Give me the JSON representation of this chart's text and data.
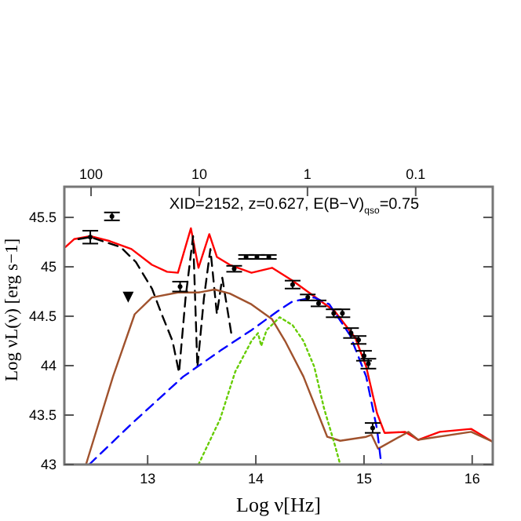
{
  "chart_data": {
    "type": "line",
    "title": "XID=2152, z=0.627, E(B−V)$_{qso}$=0.75",
    "xlabel": "Log ν[Hz]",
    "ylabel": "Log νL(ν) [erg s−1]",
    "xlim": [
      12.23,
      16.19
    ],
    "xticks": [
      13,
      14,
      15,
      16
    ],
    "ylim": [
      43,
      45.81
    ],
    "yticks": [
      43,
      43.5,
      44,
      44.5,
      45,
      45.5
    ],
    "x2lim": [
      176.6,
      0.0194
    ],
    "x2ticks": [
      100,
      10,
      1,
      0.1
    ],
    "log": "x2",
    "grid": false,
    "series": [
      {
        "color": "#ff0000",
        "line_style": "solid",
        "x": [
          12.24,
          12.32,
          12.47,
          12.65,
          12.85,
          13.04,
          13.18,
          13.28,
          13.4,
          13.47,
          13.57,
          13.64,
          13.76,
          13.96,
          14.15,
          14.34,
          14.54,
          14.73,
          14.92,
          15.02,
          15.12,
          15.19,
          15.38,
          15.5,
          15.7,
          15.99,
          16.19
        ],
        "values": [
          45.2,
          45.28,
          45.31,
          45.26,
          45.18,
          45.02,
          44.95,
          44.94,
          45.39,
          44.99,
          45.33,
          45.1,
          45.02,
          44.94,
          44.99,
          44.86,
          44.7,
          44.55,
          44.28,
          43.99,
          43.52,
          43.32,
          43.33,
          43.25,
          43.33,
          43.36,
          43.23
        ]
      },
      {
        "color": "#000000",
        "line_style": "dashed",
        "x": [
          12.36,
          12.47,
          12.75,
          12.89,
          13.04,
          13.13,
          13.23,
          13.29,
          13.35,
          13.42,
          13.46,
          13.52,
          13.58,
          13.64,
          13.69,
          13.78
        ],
        "values": [
          45.28,
          45.3,
          45.2,
          45.05,
          44.78,
          44.52,
          44.25,
          43.93,
          44.68,
          45.31,
          43.98,
          44.68,
          45.18,
          44.52,
          44.89,
          44.28
        ]
      },
      {
        "color": "#a0522d",
        "line_style": "solid",
        "x": [
          12.43,
          12.68,
          12.88,
          13.04,
          13.28,
          13.47,
          13.62,
          13.76,
          13.96,
          14.15,
          14.27,
          14.44,
          14.66,
          14.78,
          15.02,
          15.07,
          15.13,
          15.41,
          15.5,
          15.99,
          16.19
        ],
        "values": [
          43.0,
          43.89,
          44.52,
          44.69,
          44.74,
          44.74,
          44.77,
          44.73,
          44.62,
          44.47,
          44.25,
          43.89,
          43.28,
          43.24,
          43.28,
          43.3,
          43.16,
          43.33,
          43.25,
          43.33,
          43.23
        ]
      },
      {
        "color": "#0000ff",
        "line_style": "dashed",
        "x": [
          12.46,
          12.85,
          13.33,
          13.67,
          13.96,
          14.2,
          14.34,
          14.54,
          14.68,
          14.87,
          15.02,
          15.12,
          15.16
        ],
        "values": [
          43.0,
          43.41,
          43.89,
          44.15,
          44.36,
          44.55,
          44.65,
          44.69,
          44.62,
          44.31,
          43.89,
          43.36,
          43.0
        ]
      },
      {
        "color": "#66cc00",
        "line_style": "dotted",
        "x": [
          13.47,
          13.67,
          13.81,
          13.96,
          14.02,
          14.05,
          14.1,
          14.22,
          14.34,
          14.44,
          14.54,
          14.63,
          14.73,
          14.78
        ],
        "values": [
          43.0,
          43.46,
          43.94,
          44.25,
          44.33,
          44.2,
          44.36,
          44.49,
          44.41,
          44.25,
          43.99,
          43.57,
          43.2,
          43.0
        ]
      },
      {
        "type": "scatter",
        "color": "#000000",
        "marker": "circle",
        "x": [
          12.47,
          12.67,
          13.3,
          13.8,
          13.91,
          14.01,
          14.12,
          14.34,
          14.48,
          14.58,
          14.72,
          14.8,
          14.88,
          14.95,
          15.0,
          15.04,
          15.08
        ],
        "values": [
          45.3,
          45.51,
          44.8,
          44.98,
          45.1,
          45.1,
          45.1,
          44.82,
          44.69,
          44.63,
          44.53,
          44.53,
          44.33,
          44.26,
          44.1,
          44.02,
          43.37
        ],
        "errors": [
          0.065,
          0.04,
          0.05,
          0.03,
          0.02,
          0.02,
          0.02,
          0.04,
          0.03,
          0.03,
          0.04,
          0.04,
          0.05,
          0.04,
          0.05,
          0.05,
          0.05
        ]
      },
      {
        "type": "scatter",
        "color": "#000000",
        "marker": "triangle",
        "x": [
          12.82
        ],
        "values": [
          44.7
        ]
      }
    ]
  }
}
